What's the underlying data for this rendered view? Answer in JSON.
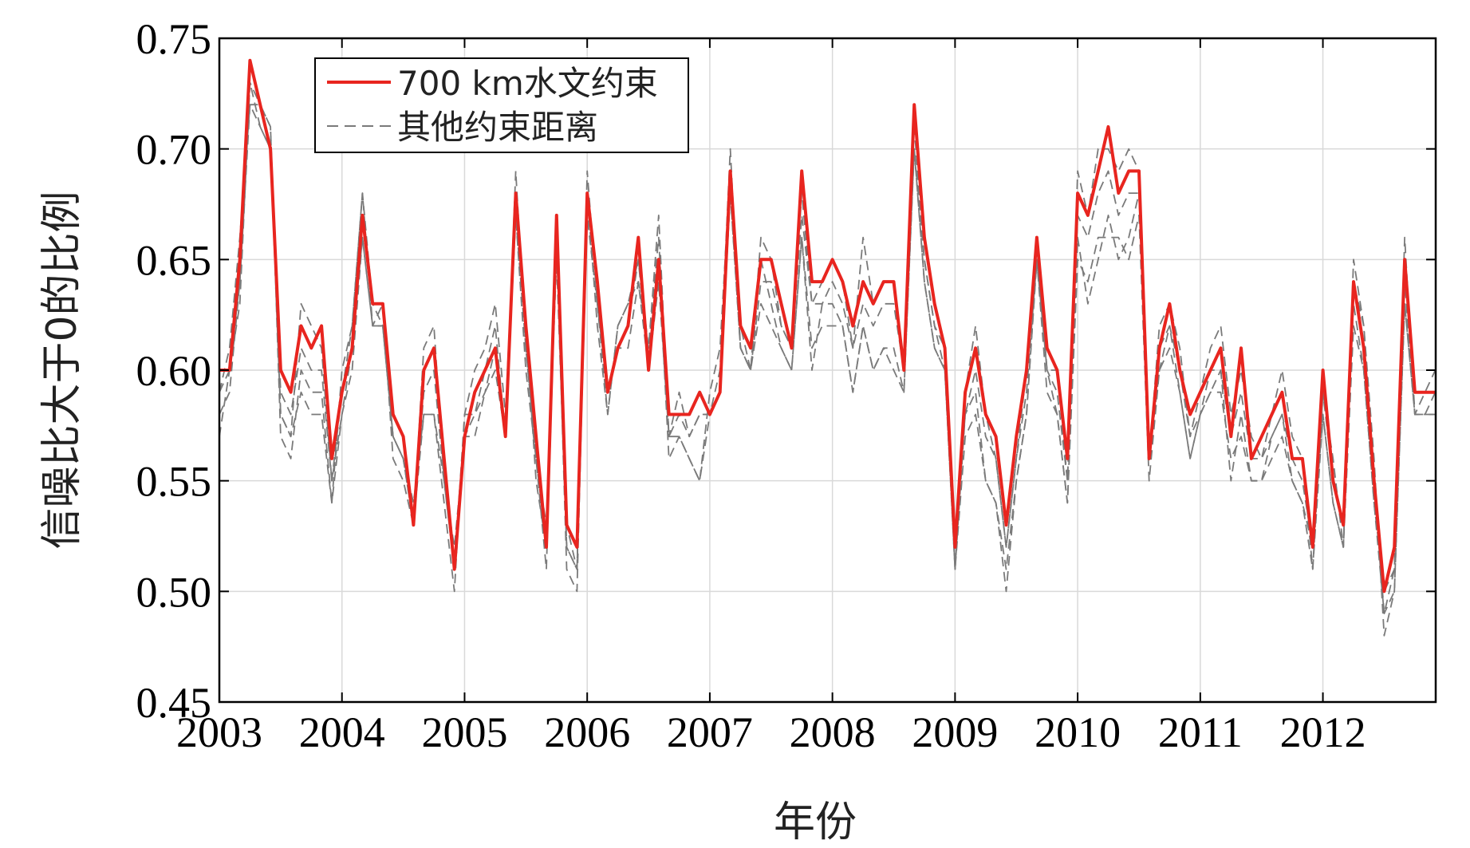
{
  "chart_data": {
    "type": "line",
    "title": "",
    "xlabel": "年份",
    "ylabel": "信噪比大于0的比例",
    "x_tick_labels": [
      "2003",
      "2004",
      "2005",
      "2006",
      "2007",
      "2008",
      "2009",
      "2010",
      "2011",
      "2012"
    ],
    "x_ticks": [
      2003,
      2004,
      2005,
      2006,
      2007,
      2008,
      2009,
      2010,
      2011,
      2012
    ],
    "xlim": [
      2003,
      2012.92
    ],
    "y_tick_labels": [
      "0.45",
      "0.50",
      "0.55",
      "0.60",
      "0.65",
      "0.70",
      "0.75"
    ],
    "y_ticks": [
      0.45,
      0.5,
      0.55,
      0.6,
      0.65,
      0.7,
      0.75
    ],
    "ylim": [
      0.45,
      0.75
    ],
    "grid": true,
    "legend_position": "top-left",
    "legend": [
      "700 km水文约束",
      "其他约束距离"
    ],
    "x": [
      2003.0,
      2003.083,
      2003.167,
      2003.25,
      2003.333,
      2003.417,
      2003.5,
      2003.583,
      2003.667,
      2003.75,
      2003.833,
      2003.917,
      2004.0,
      2004.083,
      2004.167,
      2004.25,
      2004.333,
      2004.417,
      2004.5,
      2004.583,
      2004.667,
      2004.75,
      2004.833,
      2004.917,
      2005.0,
      2005.083,
      2005.167,
      2005.25,
      2005.333,
      2005.417,
      2005.5,
      2005.583,
      2005.667,
      2005.75,
      2005.833,
      2005.917,
      2006.0,
      2006.083,
      2006.167,
      2006.25,
      2006.333,
      2006.417,
      2006.5,
      2006.583,
      2006.667,
      2006.75,
      2006.833,
      2006.917,
      2007.0,
      2007.083,
      2007.167,
      2007.25,
      2007.333,
      2007.417,
      2007.5,
      2007.583,
      2007.667,
      2007.75,
      2007.833,
      2007.917,
      2008.0,
      2008.083,
      2008.167,
      2008.25,
      2008.333,
      2008.417,
      2008.5,
      2008.583,
      2008.667,
      2008.75,
      2008.833,
      2008.917,
      2009.0,
      2009.083,
      2009.167,
      2009.25,
      2009.333,
      2009.417,
      2009.5,
      2009.583,
      2009.667,
      2009.75,
      2009.833,
      2009.917,
      2010.0,
      2010.083,
      2010.167,
      2010.25,
      2010.333,
      2010.417,
      2010.5,
      2010.583,
      2010.667,
      2010.75,
      2010.833,
      2010.917,
      2011.0,
      2011.083,
      2011.167,
      2011.25,
      2011.333,
      2011.417,
      2011.5,
      2011.583,
      2011.667,
      2011.75,
      2011.833,
      2011.917,
      2012.0,
      2012.083,
      2012.167,
      2012.25,
      2012.333,
      2012.417,
      2012.5,
      2012.583,
      2012.667,
      2012.75,
      2012.833,
      2012.917
    ],
    "series": [
      {
        "name": "700 km水文约束",
        "color": "#e8251f",
        "style": "solid",
        "values": [
          0.6,
          0.6,
          0.65,
          0.74,
          0.72,
          0.7,
          0.6,
          0.59,
          0.62,
          0.61,
          0.62,
          0.56,
          0.59,
          0.61,
          0.67,
          0.63,
          0.63,
          0.58,
          0.57,
          0.53,
          0.6,
          0.61,
          0.56,
          0.51,
          0.57,
          0.59,
          0.6,
          0.61,
          0.57,
          0.68,
          0.62,
          0.57,
          0.52,
          0.67,
          0.53,
          0.52,
          0.68,
          0.64,
          0.59,
          0.61,
          0.62,
          0.66,
          0.6,
          0.65,
          0.58,
          0.58,
          0.58,
          0.59,
          0.58,
          0.59,
          0.69,
          0.62,
          0.61,
          0.65,
          0.65,
          0.63,
          0.61,
          0.69,
          0.64,
          0.64,
          0.65,
          0.64,
          0.62,
          0.64,
          0.63,
          0.64,
          0.64,
          0.6,
          0.72,
          0.66,
          0.63,
          0.61,
          0.52,
          0.59,
          0.61,
          0.58,
          0.57,
          0.53,
          0.57,
          0.6,
          0.66,
          0.61,
          0.6,
          0.56,
          0.68,
          0.67,
          0.69,
          0.71,
          0.68,
          0.69,
          0.69,
          0.56,
          0.61,
          0.63,
          0.6,
          0.58,
          0.59,
          0.6,
          0.61,
          0.57,
          0.61,
          0.56,
          0.57,
          0.58,
          0.59,
          0.56,
          0.56,
          0.52,
          0.6,
          0.55,
          0.53,
          0.64,
          0.61,
          0.55,
          0.5,
          0.52,
          0.65,
          0.59,
          0.59,
          0.59
        ]
      },
      {
        "name": "其他约束距离 1",
        "color": "#7a7a7a",
        "style": "dashed",
        "values": [
          0.57,
          0.6,
          0.64,
          0.73,
          0.72,
          0.71,
          0.58,
          0.57,
          0.63,
          0.62,
          0.61,
          0.55,
          0.59,
          0.62,
          0.68,
          0.63,
          0.62,
          0.57,
          0.56,
          0.53,
          0.61,
          0.62,
          0.55,
          0.51,
          0.58,
          0.58,
          0.6,
          0.62,
          0.57,
          0.69,
          0.61,
          0.56,
          0.51,
          0.66,
          0.52,
          0.51,
          0.69,
          0.63,
          0.58,
          0.62,
          0.63,
          0.65,
          0.61,
          0.66,
          0.57,
          0.59,
          0.57,
          0.58,
          0.58,
          0.6,
          0.7,
          0.61,
          0.6,
          0.66,
          0.65,
          0.62,
          0.61,
          0.68,
          0.63,
          0.64,
          0.65,
          0.64,
          0.61,
          0.66,
          0.63,
          0.64,
          0.64,
          0.6,
          0.71,
          0.65,
          0.62,
          0.61,
          0.51,
          0.59,
          0.62,
          0.58,
          0.56,
          0.52,
          0.56,
          0.6,
          0.66,
          0.6,
          0.6,
          0.55,
          0.69,
          0.67,
          0.7,
          0.7,
          0.69,
          0.7,
          0.69,
          0.56,
          0.62,
          0.63,
          0.61,
          0.57,
          0.59,
          0.61,
          0.62,
          0.58,
          0.6,
          0.57,
          0.56,
          0.58,
          0.6,
          0.57,
          0.56,
          0.51,
          0.59,
          0.56,
          0.52,
          0.65,
          0.62,
          0.55,
          0.49,
          0.51,
          0.66,
          0.58,
          0.59,
          0.6
        ]
      },
      {
        "name": "其他约束距离 2",
        "color": "#7a7a7a",
        "style": "dashed",
        "values": [
          0.58,
          0.59,
          0.64,
          0.72,
          0.71,
          0.7,
          0.59,
          0.58,
          0.61,
          0.6,
          0.6,
          0.55,
          0.58,
          0.6,
          0.66,
          0.62,
          0.62,
          0.57,
          0.56,
          0.53,
          0.59,
          0.6,
          0.55,
          0.52,
          0.57,
          0.58,
          0.59,
          0.61,
          0.57,
          0.67,
          0.61,
          0.56,
          0.52,
          0.66,
          0.53,
          0.51,
          0.67,
          0.63,
          0.59,
          0.61,
          0.62,
          0.65,
          0.6,
          0.64,
          0.57,
          0.58,
          0.57,
          0.58,
          0.58,
          0.59,
          0.68,
          0.61,
          0.6,
          0.64,
          0.64,
          0.62,
          0.61,
          0.67,
          0.63,
          0.63,
          0.64,
          0.63,
          0.61,
          0.63,
          0.62,
          0.63,
          0.63,
          0.6,
          0.7,
          0.65,
          0.62,
          0.6,
          0.52,
          0.58,
          0.6,
          0.57,
          0.56,
          0.52,
          0.56,
          0.59,
          0.65,
          0.6,
          0.59,
          0.55,
          0.67,
          0.66,
          0.68,
          0.69,
          0.67,
          0.68,
          0.68,
          0.56,
          0.6,
          0.62,
          0.6,
          0.57,
          0.58,
          0.59,
          0.6,
          0.57,
          0.59,
          0.56,
          0.56,
          0.57,
          0.58,
          0.56,
          0.55,
          0.52,
          0.59,
          0.55,
          0.53,
          0.63,
          0.6,
          0.54,
          0.5,
          0.51,
          0.64,
          0.58,
          0.58,
          0.59
        ]
      },
      {
        "name": "其他约束距离 3",
        "color": "#7a7a7a",
        "style": "dashed",
        "values": [
          0.59,
          0.61,
          0.66,
          0.72,
          0.72,
          0.71,
          0.57,
          0.56,
          0.6,
          0.59,
          0.59,
          0.54,
          0.6,
          0.62,
          0.68,
          0.62,
          0.63,
          0.56,
          0.55,
          0.53,
          0.58,
          0.58,
          0.54,
          0.5,
          0.58,
          0.6,
          0.61,
          0.63,
          0.58,
          0.68,
          0.62,
          0.55,
          0.52,
          0.66,
          0.51,
          0.5,
          0.68,
          0.62,
          0.58,
          0.62,
          0.63,
          0.64,
          0.61,
          0.67,
          0.57,
          0.57,
          0.56,
          0.55,
          0.59,
          0.61,
          0.69,
          0.62,
          0.6,
          0.65,
          0.63,
          0.61,
          0.6,
          0.66,
          0.6,
          0.63,
          0.63,
          0.62,
          0.59,
          0.62,
          0.6,
          0.61,
          0.61,
          0.59,
          0.7,
          0.64,
          0.61,
          0.6,
          0.51,
          0.58,
          0.59,
          0.55,
          0.54,
          0.5,
          0.55,
          0.58,
          0.65,
          0.6,
          0.58,
          0.54,
          0.66,
          0.63,
          0.65,
          0.67,
          0.65,
          0.66,
          0.68,
          0.56,
          0.61,
          0.62,
          0.59,
          0.56,
          0.58,
          0.6,
          0.6,
          0.55,
          0.58,
          0.55,
          0.55,
          0.57,
          0.58,
          0.55,
          0.54,
          0.51,
          0.58,
          0.54,
          0.52,
          0.64,
          0.62,
          0.56,
          0.48,
          0.5,
          0.63,
          0.58,
          0.58,
          0.58
        ]
      },
      {
        "name": "其他约束距离 4",
        "color": "#7a7a7a",
        "style": "dashed",
        "values": [
          0.59,
          0.6,
          0.63,
          0.73,
          0.71,
          0.7,
          0.58,
          0.57,
          0.59,
          0.58,
          0.58,
          0.54,
          0.58,
          0.61,
          0.66,
          0.62,
          0.62,
          0.57,
          0.56,
          0.54,
          0.58,
          0.58,
          0.55,
          0.51,
          0.57,
          0.57,
          0.59,
          0.6,
          0.57,
          0.67,
          0.6,
          0.56,
          0.53,
          0.65,
          0.52,
          0.51,
          0.67,
          0.63,
          0.59,
          0.61,
          0.61,
          0.64,
          0.6,
          0.65,
          0.56,
          0.57,
          0.56,
          0.55,
          0.58,
          0.59,
          0.68,
          0.61,
          0.6,
          0.63,
          0.62,
          0.61,
          0.6,
          0.66,
          0.61,
          0.62,
          0.62,
          0.62,
          0.59,
          0.62,
          0.6,
          0.61,
          0.6,
          0.59,
          0.7,
          0.64,
          0.61,
          0.6,
          0.51,
          0.57,
          0.58,
          0.55,
          0.54,
          0.51,
          0.55,
          0.58,
          0.65,
          0.59,
          0.58,
          0.54,
          0.65,
          0.64,
          0.66,
          0.66,
          0.66,
          0.65,
          0.67,
          0.55,
          0.6,
          0.61,
          0.59,
          0.56,
          0.58,
          0.59,
          0.59,
          0.56,
          0.57,
          0.55,
          0.55,
          0.56,
          0.57,
          0.55,
          0.54,
          0.52,
          0.58,
          0.54,
          0.52,
          0.62,
          0.6,
          0.54,
          0.49,
          0.5,
          0.63,
          0.58,
          0.58,
          0.58
        ]
      }
    ]
  }
}
